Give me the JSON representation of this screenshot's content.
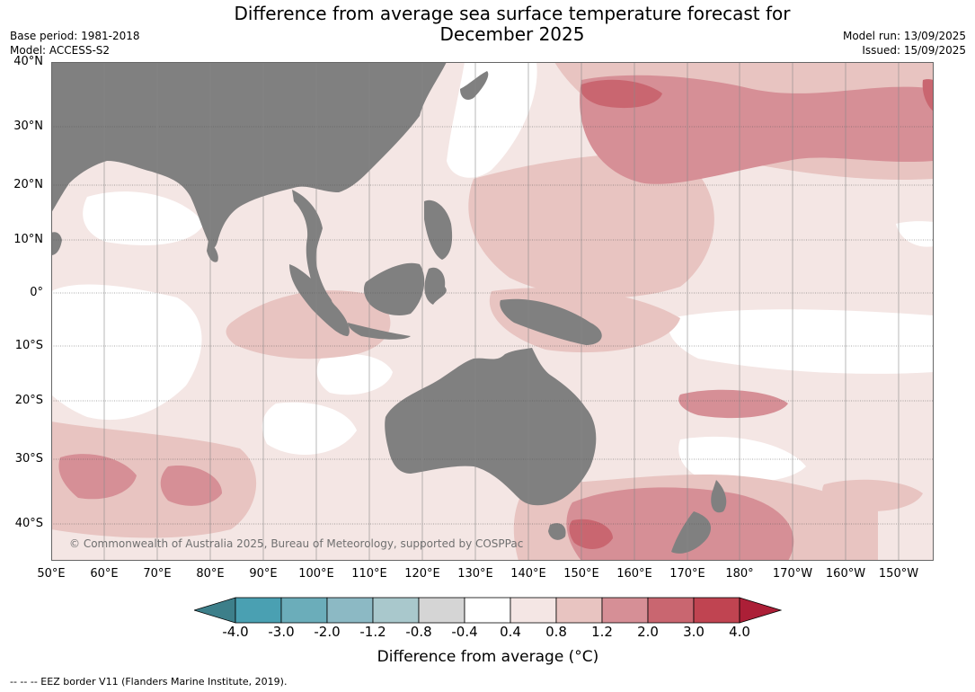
{
  "header": {
    "title_line1": "Difference from average sea surface temperature forecast for",
    "title_line2": "December 2025",
    "base_period": "Base period: 1981-2018",
    "model": "Model: ACCESS-S2",
    "model_run": "Model run: 13/09/2025",
    "issued": "Issued: 15/09/2025"
  },
  "map": {
    "lat_labels": [
      "40°N",
      "30°N",
      "20°N",
      "10°N",
      "0°",
      "10°S",
      "20°S",
      "30°S",
      "40°S"
    ],
    "lon_labels": [
      "50°E",
      "60°E",
      "70°E",
      "80°E",
      "90°E",
      "100°E",
      "110°E",
      "120°E",
      "130°E",
      "140°E",
      "150°E",
      "160°E",
      "170°E",
      "180°",
      "170°W",
      "160°W",
      "150°W"
    ],
    "land_color": "#808080",
    "copyright": "© Commonwealth of Australia 2025, Bureau of Meteorology, supported by COSPPac"
  },
  "colorbar": {
    "ticks": [
      "-4.0",
      "-3.0",
      "-2.0",
      "-1.2",
      "-0.8",
      "-0.4",
      "0.4",
      "0.8",
      "1.2",
      "2.0",
      "3.0",
      "4.0"
    ],
    "colors": [
      "#3d7f8a",
      "#4aa0b2",
      "#6badba",
      "#8cb9c4",
      "#a9c8cc",
      "#d5d5d5",
      "#ffffff",
      "#f4e6e4",
      "#e8c4c1",
      "#d68f96",
      "#c96670",
      "#c04451",
      "#ac1f37"
    ],
    "label": "Difference from average (°C)"
  },
  "footnote": "--  --  -- EEZ border V11 (Flanders Marine Institute, 2019)."
}
